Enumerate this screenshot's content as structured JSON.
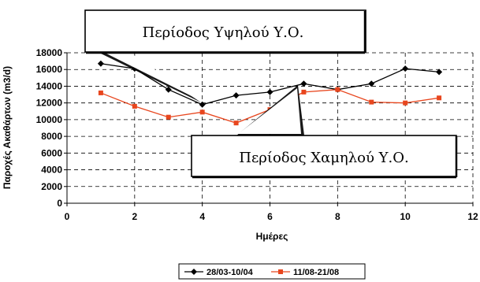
{
  "chart_data": {
    "type": "line",
    "ylabel": "Παροχές Ακαθάρτων (m3/d)",
    "xlabel": "Ημέρες",
    "xlim": [
      0,
      12
    ],
    "ylim": [
      0,
      18000
    ],
    "x_ticks": [
      "0",
      "2",
      "4",
      "6",
      "8",
      "10",
      "12"
    ],
    "y_ticks": [
      "0",
      "2000",
      "4000",
      "6000",
      "8000",
      "10000",
      "12000",
      "14000",
      "16000",
      "18000"
    ],
    "grid": "horizontal dashed",
    "legend_position": "bottom",
    "series": [
      {
        "name": "28/03-10/04",
        "color": "#000000",
        "marker": "diamond",
        "x": [
          1,
          2,
          3,
          4,
          5,
          6,
          7,
          8,
          9,
          10,
          11
        ],
        "values": [
          16700,
          16100,
          13600,
          11800,
          12900,
          13300,
          14300,
          13600,
          14300,
          16100,
          15700
        ]
      },
      {
        "name": "11/08-21/08",
        "color": "#e8461e",
        "marker": "square",
        "x": [
          1,
          2,
          3,
          4,
          5,
          6,
          7,
          8,
          9,
          10,
          11
        ],
        "values": [
          13200,
          11600,
          10300,
          10900,
          9600,
          11200,
          13300,
          13600,
          12100,
          12000,
          12600
        ]
      }
    ],
    "annotations": [
      {
        "text": "Περίοδος Υψηλού Υ.Ο."
      },
      {
        "text": "Περίοδος Χαμηλού Υ.Ο."
      }
    ]
  }
}
